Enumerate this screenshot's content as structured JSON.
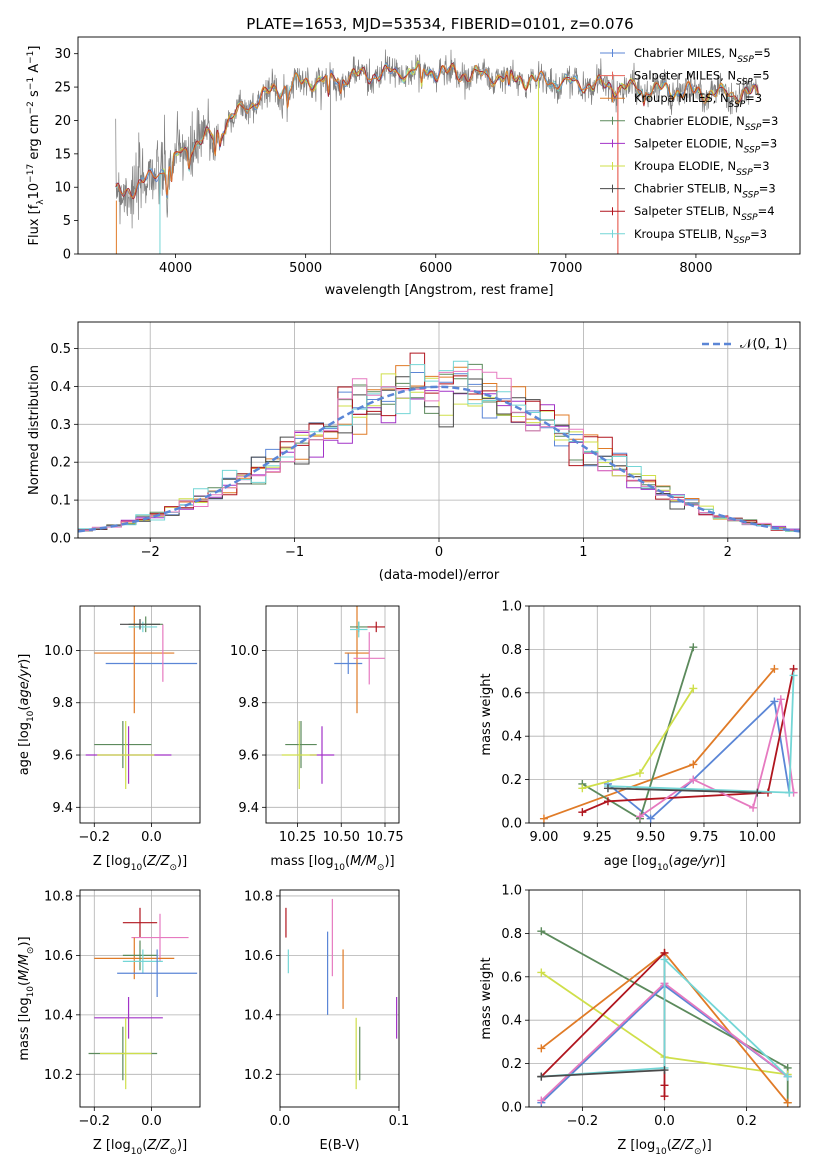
{
  "figure_title": "PLATE=1653, MJD=53534, FIBERID=0101, z=0.076",
  "colors": {
    "Chabrier MILES": "#5b86d6",
    "Salpeter MILES": "#e8655a",
    "Kroupa MILES": "#e07b27",
    "Chabrier ELODIE": "#5c8a5c",
    "Salpeter ELODIE": "#a233c7",
    "Kroupa ELODIE": "#cfdf4a",
    "Chabrier STELIB": "#4a4a4a",
    "Salpeter STELIB": "#b0151e",
    "Kroupa STELIB": "#74d6d6",
    "Salpeter MILES (pink)": "#e67ac0",
    "data": "#7f7f7f"
  },
  "legend_spectrum": [
    {
      "name": "Chabrier MILES",
      "nssp": "5"
    },
    {
      "name": "Salpeter MILES",
      "nssp": "5"
    },
    {
      "name": "Kroupa MILES",
      "nssp": "3"
    },
    {
      "name": "Chabrier ELODIE",
      "nssp": "3"
    },
    {
      "name": "Salpeter ELODIE",
      "nssp": "3"
    },
    {
      "name": "Kroupa ELODIE",
      "nssp": "3"
    },
    {
      "name": "Chabrier STELIB",
      "nssp": "3"
    },
    {
      "name": "Salpeter STELIB",
      "nssp": "4"
    },
    {
      "name": "Kroupa STELIB",
      "nssp": "3"
    }
  ],
  "chart_data": [
    {
      "id": "spectrum",
      "type": "line",
      "xlabel": "wavelength [Angstrom, rest frame]",
      "ylabel": "Flux [f_λ 10^-17 erg cm^-2 s^-1 A^-1]",
      "xlim": [
        3250,
        8800
      ],
      "ylim": [
        0,
        32.5
      ],
      "xticks": [
        4000,
        5000,
        6000,
        7000,
        8000
      ],
      "yticks": [
        0,
        5,
        10,
        15,
        20,
        25,
        30
      ],
      "continuum_anchors": [
        [
          3540,
          9
        ],
        [
          3700,
          10
        ],
        [
          3850,
          12
        ],
        [
          3950,
          13.5
        ],
        [
          4100,
          16
        ],
        [
          4300,
          18
        ],
        [
          4500,
          21.5
        ],
        [
          4700,
          24
        ],
        [
          4900,
          25.5
        ],
        [
          5100,
          26
        ],
        [
          5300,
          26.5
        ],
        [
          5600,
          27
        ],
        [
          5900,
          27.5
        ],
        [
          6200,
          27
        ],
        [
          6500,
          26.5
        ],
        [
          6800,
          26
        ],
        [
          7100,
          25.5
        ],
        [
          7400,
          25
        ],
        [
          7800,
          24.5
        ],
        [
          8200,
          24
        ],
        [
          8500,
          24
        ]
      ],
      "grid": false,
      "legend_position": "upper right"
    },
    {
      "id": "residuals",
      "type": "histogram",
      "xlabel": "(data-model)/error",
      "ylabel": "Normed distribution",
      "xlim": [
        -2.5,
        2.5
      ],
      "ylim": [
        0,
        0.57
      ],
      "xticks": [
        -2,
        -1,
        0,
        1,
        2
      ],
      "yticks": [
        0.0,
        0.1,
        0.2,
        0.3,
        0.4,
        0.5
      ],
      "bin_width": 0.1,
      "reference_curve": "N(0,1)",
      "legend": "𝒩(0, 1)",
      "legend_position": "upper right",
      "grid": true
    },
    {
      "id": "age_vs_Z",
      "type": "scatter",
      "xlabel": "Z [log10(Z/Z⊙)]",
      "ylabel": "age [log10(age/yr)]",
      "xlim": [
        -0.25,
        0.17
      ],
      "ylim": [
        9.34,
        10.17
      ],
      "xticks": [
        -0.2,
        0.0
      ],
      "yticks": [
        9.4,
        9.6,
        9.8,
        10.0
      ],
      "points": [
        {
          "series": "Chabrier MILES",
          "x": 0.0,
          "y": 9.95,
          "xerr": 0.16,
          "yerr": 0.0
        },
        {
          "series": "Kroupa MILES",
          "x": -0.06,
          "y": 9.99,
          "xerr": 0.14,
          "yerr": 0.23
        },
        {
          "series": "Salpeter MILES (pink)",
          "x": 0.04,
          "y": 9.99,
          "xerr": 0.0,
          "yerr": 0.11
        },
        {
          "series": "Chabrier ELODIE",
          "x": -0.02,
          "y": 10.1,
          "xerr": 0.06,
          "yerr": 0.03
        },
        {
          "series": "Kroupa STELIB",
          "x": -0.03,
          "y": 10.09,
          "xerr": 0.05,
          "yerr": 0.02
        },
        {
          "series": "Chabrier STELIB",
          "x": -0.04,
          "y": 10.1,
          "xerr": 0.07,
          "yerr": 0.02
        },
        {
          "series": "Chabrier ELODIE",
          "x": -0.1,
          "y": 9.64,
          "xerr": 0.1,
          "yerr": 0.09
        },
        {
          "series": "Salpeter ELODIE",
          "x": -0.08,
          "y": 9.6,
          "xerr": 0.15,
          "yerr": 0.11
        },
        {
          "series": "Kroupa ELODIE",
          "x": -0.09,
          "y": 9.6,
          "xerr": 0.1,
          "yerr": 0.13
        }
      ],
      "grid": true
    },
    {
      "id": "age_vs_mass",
      "type": "scatter",
      "xlabel": "mass [log10(M/M⊙)]",
      "ylabel": "",
      "xlim": [
        10.07,
        10.83
      ],
      "ylim": [
        9.34,
        10.17
      ],
      "xticks": [
        10.25,
        10.5,
        10.75
      ],
      "yticks": [
        9.4,
        9.6,
        9.8,
        10.0
      ],
      "points": [
        {
          "series": "Chabrier MILES",
          "x": 10.54,
          "y": 9.95,
          "xerr": 0.08,
          "yerr": 0.04
        },
        {
          "series": "Kroupa MILES",
          "x": 10.59,
          "y": 9.99,
          "xerr": 0.07,
          "yerr": 0.23
        },
        {
          "series": "Salpeter MILES (pink)",
          "x": 10.66,
          "y": 9.97,
          "xerr": 0.09,
          "yerr": 0.1
        },
        {
          "series": "Chabrier ELODIE",
          "x": 10.6,
          "y": 10.09,
          "xerr": 0.05,
          "yerr": 0.02
        },
        {
          "series": "Kroupa STELIB",
          "x": 10.6,
          "y": 10.08,
          "xerr": 0.05,
          "yerr": 0.03
        },
        {
          "series": "Salpeter STELIB",
          "x": 10.7,
          "y": 10.09,
          "xerr": 0.05,
          "yerr": 0.02
        },
        {
          "series": "Chabrier ELODIE",
          "x": 10.27,
          "y": 9.64,
          "xerr": 0.09,
          "yerr": 0.09
        },
        {
          "series": "Salpeter ELODIE",
          "x": 10.39,
          "y": 9.6,
          "xerr": 0.07,
          "yerr": 0.11
        },
        {
          "series": "Kroupa ELODIE",
          "x": 10.26,
          "y": 9.6,
          "xerr": 0.1,
          "yerr": 0.13
        }
      ],
      "grid": true
    },
    {
      "id": "massweight_vs_age",
      "type": "line",
      "xlabel": "age [log10(age/yr)]",
      "ylabel": "mass weight",
      "xlim": [
        8.93,
        10.2
      ],
      "ylim": [
        0,
        1
      ],
      "xticks": [
        9.0,
        9.25,
        9.5,
        9.75,
        10.0
      ],
      "yticks": [
        0.0,
        0.2,
        0.4,
        0.6,
        0.8,
        1.0
      ],
      "series": [
        {
          "name": "Kroupa MILES",
          "x": [
            9.0,
            9.7,
            10.08
          ],
          "y": [
            0.02,
            0.27,
            0.71
          ]
        },
        {
          "name": "Chabrier MILES",
          "x": [
            9.3,
            9.5,
            9.7,
            10.08,
            10.15
          ],
          "y": [
            0.18,
            0.02,
            0.2,
            0.56,
            0.14
          ]
        },
        {
          "name": "Chabrier ELODIE",
          "x": [
            9.18,
            9.45,
            9.7
          ],
          "y": [
            0.18,
            0.02,
            0.81
          ]
        },
        {
          "name": "Kroupa ELODIE",
          "x": [
            9.18,
            9.45,
            9.7
          ],
          "y": [
            0.16,
            0.23,
            0.62
          ]
        },
        {
          "name": "Salpeter STELIB",
          "x": [
            9.18,
            9.3,
            10.05,
            10.17
          ],
          "y": [
            0.05,
            0.1,
            0.14,
            0.71
          ]
        },
        {
          "name": "Salpeter MILES (pink)",
          "x": [
            9.45,
            9.7,
            9.98,
            10.11,
            10.17
          ],
          "y": [
            0.03,
            0.2,
            0.07,
            0.57,
            0.14
          ]
        },
        {
          "name": "Kroupa STELIB",
          "x": [
            9.3,
            10.15,
            10.17
          ],
          "y": [
            0.17,
            0.14,
            0.68
          ]
        },
        {
          "name": "Chabrier STELIB",
          "x": [
            9.3,
            10.0
          ],
          "y": [
            0.16,
            0.14
          ]
        }
      ],
      "grid": true
    },
    {
      "id": "mass_vs_Z",
      "type": "scatter",
      "xlabel": "Z [log10(Z/Z⊙)]",
      "ylabel": "mass [log10(M/M⊙)]",
      "xlim": [
        -0.25,
        0.17
      ],
      "ylim": [
        10.09,
        10.82
      ],
      "xticks": [
        -0.2,
        0.0
      ],
      "yticks": [
        10.2,
        10.4,
        10.6,
        10.8
      ],
      "points": [
        {
          "series": "Salpeter STELIB",
          "x": -0.04,
          "y": 10.71,
          "xerr": 0.06,
          "yerr": 0.05
        },
        {
          "series": "Salpeter MILES (pink)",
          "x": 0.03,
          "y": 10.66,
          "xerr": 0.1,
          "yerr": 0.08
        },
        {
          "series": "Kroupa MILES",
          "x": -0.06,
          "y": 10.59,
          "xerr": 0.14,
          "yerr": 0.07
        },
        {
          "series": "Chabrier ELODIE",
          "x": -0.04,
          "y": 10.6,
          "xerr": 0.06,
          "yerr": 0.05
        },
        {
          "series": "Kroupa STELIB",
          "x": -0.03,
          "y": 10.58,
          "xerr": 0.07,
          "yerr": 0.04
        },
        {
          "series": "Chabrier MILES",
          "x": 0.02,
          "y": 10.54,
          "xerr": 0.14,
          "yerr": 0.08
        },
        {
          "series": "Salpeter ELODIE",
          "x": -0.08,
          "y": 10.39,
          "xerr": 0.12,
          "yerr": 0.07
        },
        {
          "series": "Chabrier ELODIE",
          "x": -0.1,
          "y": 10.27,
          "xerr": 0.12,
          "yerr": 0.09
        },
        {
          "series": "Kroupa ELODIE",
          "x": -0.09,
          "y": 10.27,
          "xerr": 0.09,
          "yerr": 0.12
        }
      ],
      "grid": true
    },
    {
      "id": "mass_vs_EBV",
      "type": "scatter",
      "xlabel": "E(B-V)",
      "ylabel": "",
      "xlim": [
        0,
        0.1
      ],
      "ylim": [
        10.09,
        10.82
      ],
      "xticks": [
        0.0,
        0.1
      ],
      "yticks": [
        10.2,
        10.4,
        10.6,
        10.8
      ],
      "points": [
        {
          "series": "Salpeter STELIB",
          "x": 0.005,
          "y": 10.71,
          "yerr": 0.05
        },
        {
          "series": "Kroupa STELIB",
          "x": 0.007,
          "y": 10.58,
          "yerr": 0.04
        },
        {
          "series": "Salpeter MILES (pink)",
          "x": 0.044,
          "y": 10.66,
          "yerr": 0.13
        },
        {
          "series": "Chabrier MILES",
          "x": 0.04,
          "y": 10.54,
          "yerr": 0.14
        },
        {
          "series": "Kroupa MILES",
          "x": 0.053,
          "y": 10.52,
          "yerr": 0.1
        },
        {
          "series": "Chabrier ELODIE",
          "x": 0.067,
          "y": 10.27,
          "yerr": 0.09
        },
        {
          "series": "Kroupa ELODIE",
          "x": 0.064,
          "y": 10.27,
          "yerr": 0.12
        },
        {
          "series": "Salpeter ELODIE",
          "x": 0.098,
          "y": 10.39,
          "yerr": 0.07
        }
      ],
      "grid": true
    },
    {
      "id": "massweight_vs_Z",
      "type": "line",
      "xlabel": "Z [log10(Z/Z⊙)]",
      "ylabel": "mass weight",
      "xlim": [
        -0.33,
        0.33
      ],
      "ylim": [
        0,
        1
      ],
      "xticks": [
        -0.2,
        0.0,
        0.2
      ],
      "yticks": [
        0.0,
        0.2,
        0.4,
        0.6,
        0.8,
        1.0
      ],
      "series": [
        {
          "name": "Chabrier ELODIE",
          "x": [
            -0.3,
            0.3,
            0.3
          ],
          "y": [
            0.81,
            0.18,
            0.02
          ]
        },
        {
          "name": "Kroupa ELODIE",
          "x": [
            -0.3,
            0.0,
            0.3
          ],
          "y": [
            0.62,
            0.23,
            0.15
          ]
        },
        {
          "name": "Kroupa MILES",
          "x": [
            -0.3,
            0.0,
            0.3
          ],
          "y": [
            0.27,
            0.71,
            0.02
          ]
        },
        {
          "name": "Salpeter STELIB",
          "x": [
            -0.3,
            0.0,
            0.0,
            0.0
          ],
          "y": [
            0.14,
            0.71,
            0.1,
            0.05
          ]
        },
        {
          "name": "Chabrier MILES",
          "x": [
            -0.3,
            0.0,
            0.3
          ],
          "y": [
            0.02,
            0.56,
            0.14
          ]
        },
        {
          "name": "Salpeter MILES (pink)",
          "x": [
            -0.3,
            0.0,
            0.3
          ],
          "y": [
            0.03,
            0.57,
            0.14
          ]
        },
        {
          "name": "Kroupa STELIB",
          "x": [
            -0.3,
            0.0,
            0.0,
            0.3
          ],
          "y": [
            0.14,
            0.18,
            0.68,
            0.14
          ]
        },
        {
          "name": "Chabrier STELIB",
          "x": [
            -0.3,
            0.0
          ],
          "y": [
            0.14,
            0.17
          ]
        }
      ],
      "grid": true
    }
  ]
}
